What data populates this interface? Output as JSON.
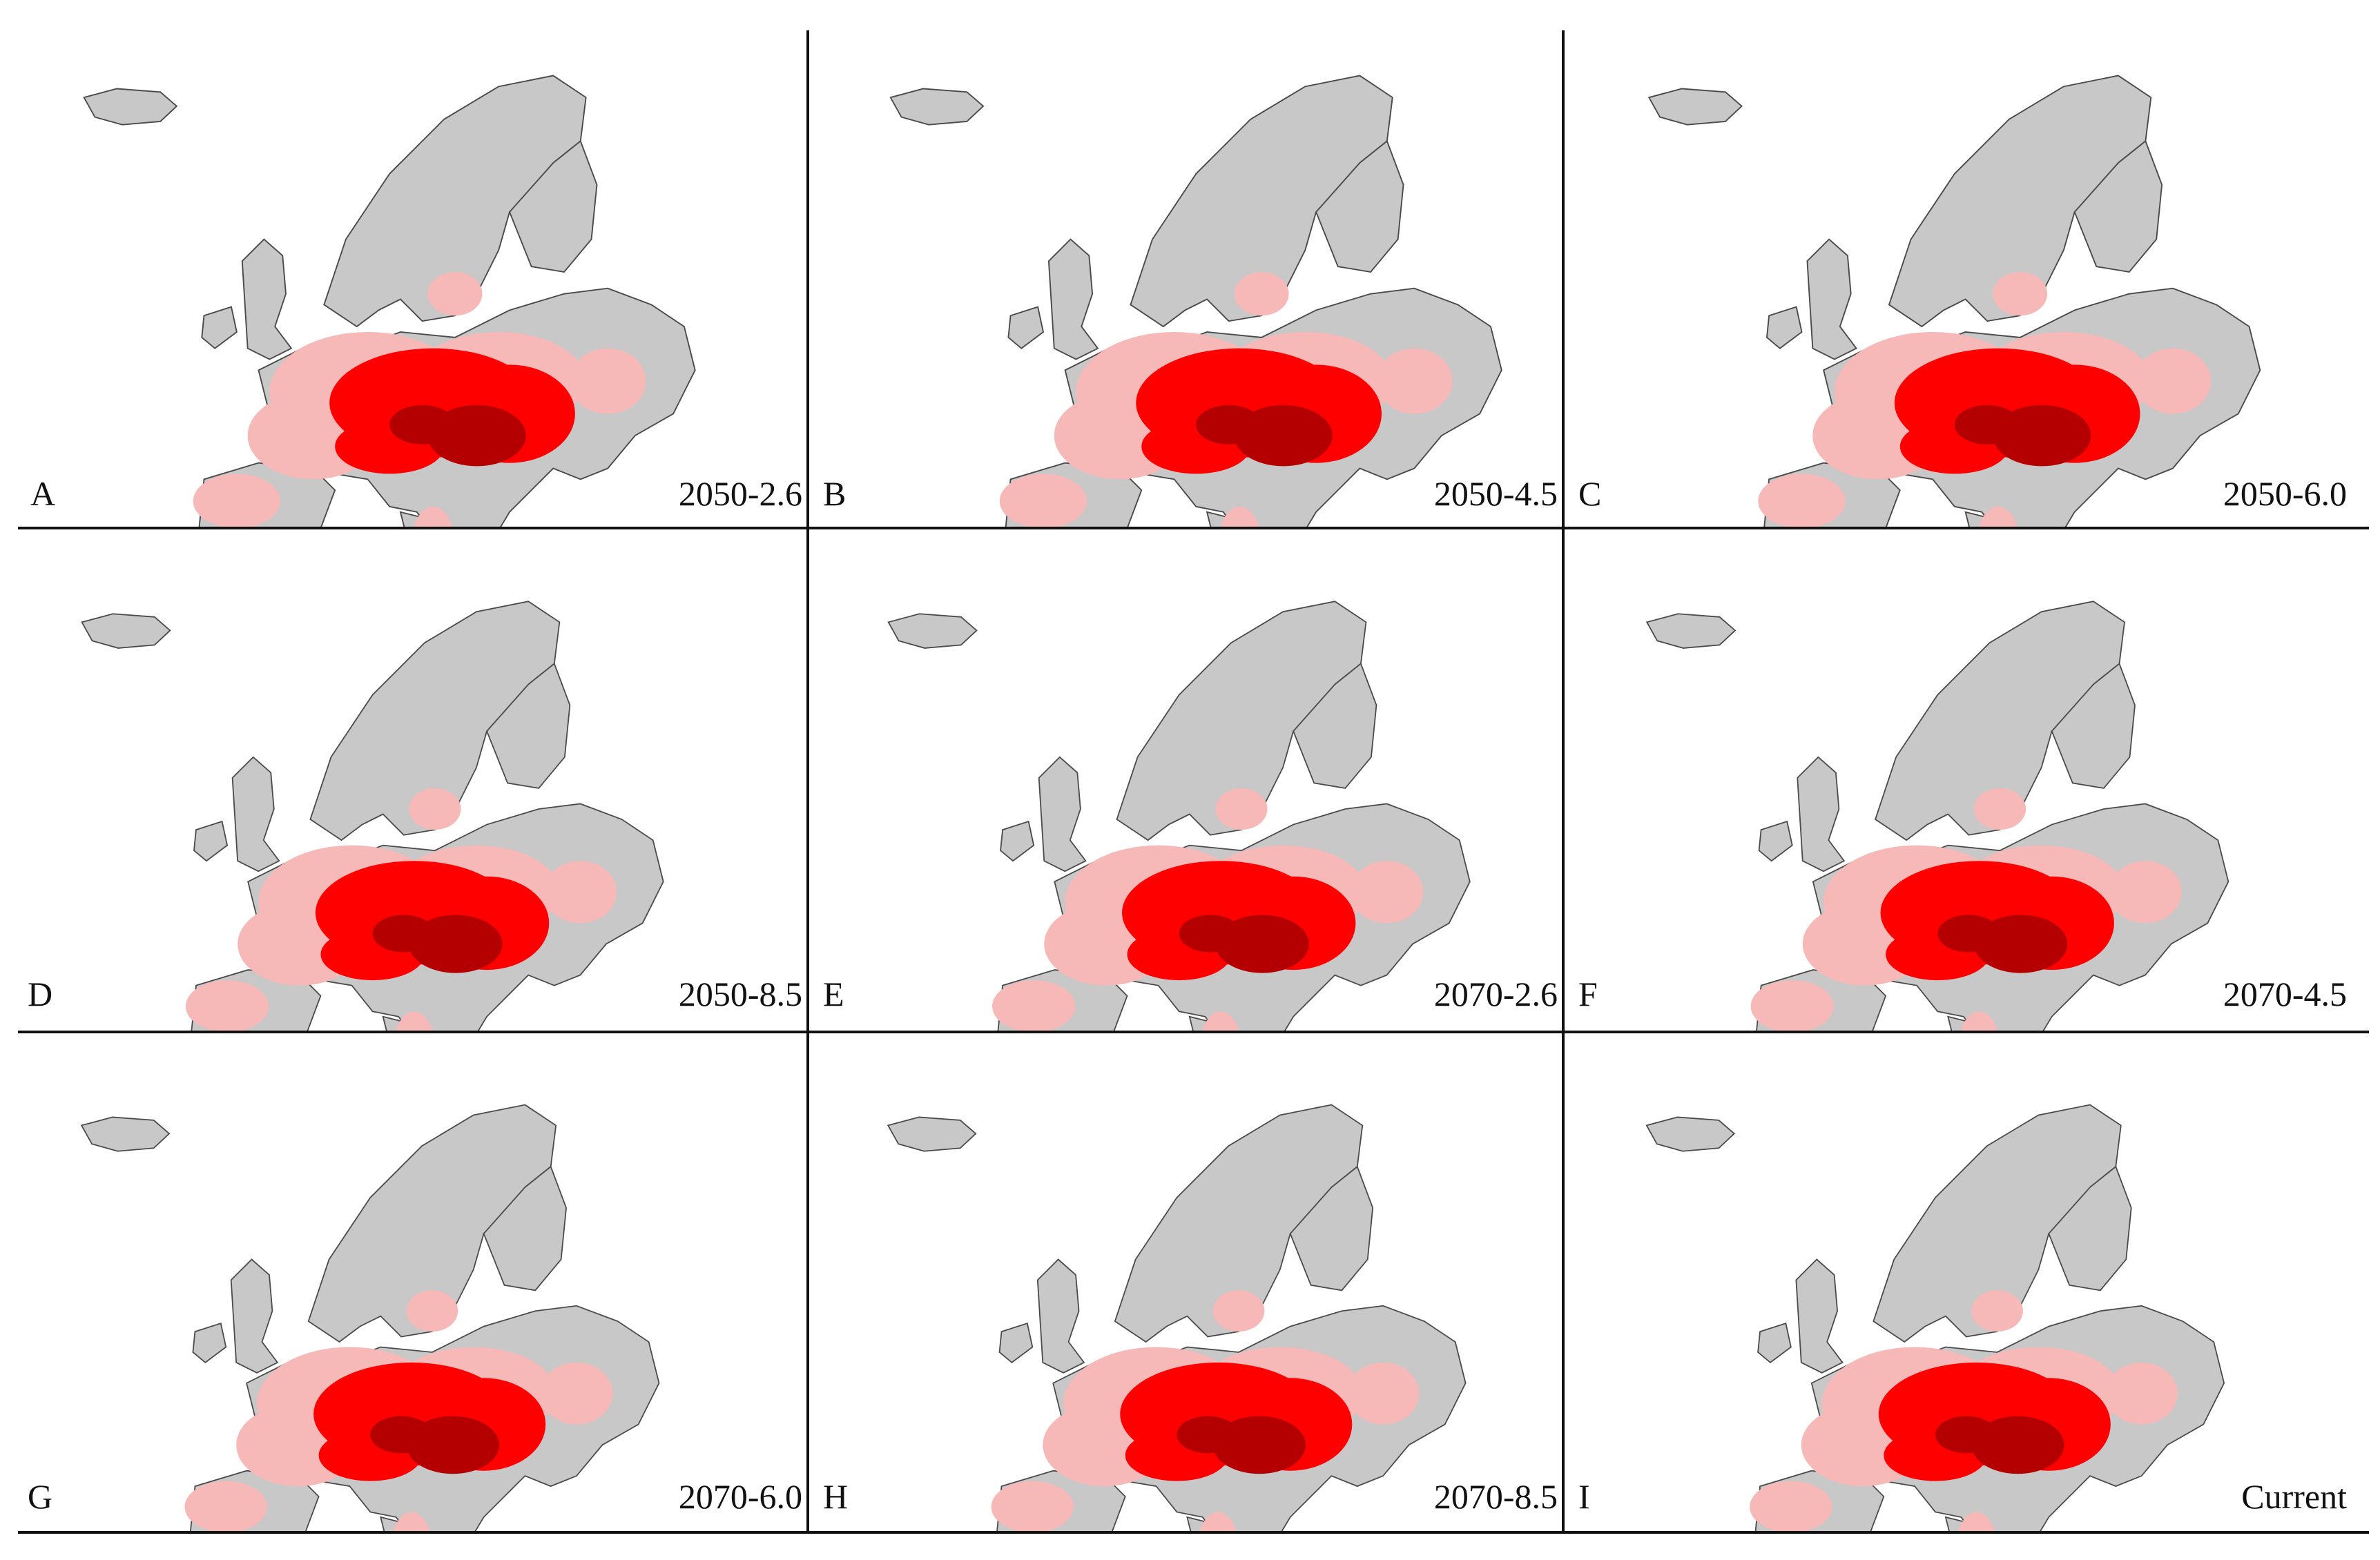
{
  "figure": {
    "colors": {
      "land": "#c8c8c8",
      "border": "#4a4a4a",
      "suitability_low": "#f7b8b8",
      "suitability_high": "#ff0000",
      "suitability_very_high": "#b40000",
      "frame": "#111111"
    },
    "panels": [
      {
        "letter": "A",
        "scenario": "2050-2.6"
      },
      {
        "letter": "B",
        "scenario": "2050-4.5"
      },
      {
        "letter": "C",
        "scenario": "2050-6.0"
      },
      {
        "letter": "D",
        "scenario": "2050-8.5"
      },
      {
        "letter": "E",
        "scenario": "2070-2.6"
      },
      {
        "letter": "F",
        "scenario": "2070-4.5"
      },
      {
        "letter": "G",
        "scenario": "2070-6.0"
      },
      {
        "letter": "H",
        "scenario": "2070-8.5"
      },
      {
        "letter": "I",
        "scenario": "Current"
      }
    ]
  }
}
